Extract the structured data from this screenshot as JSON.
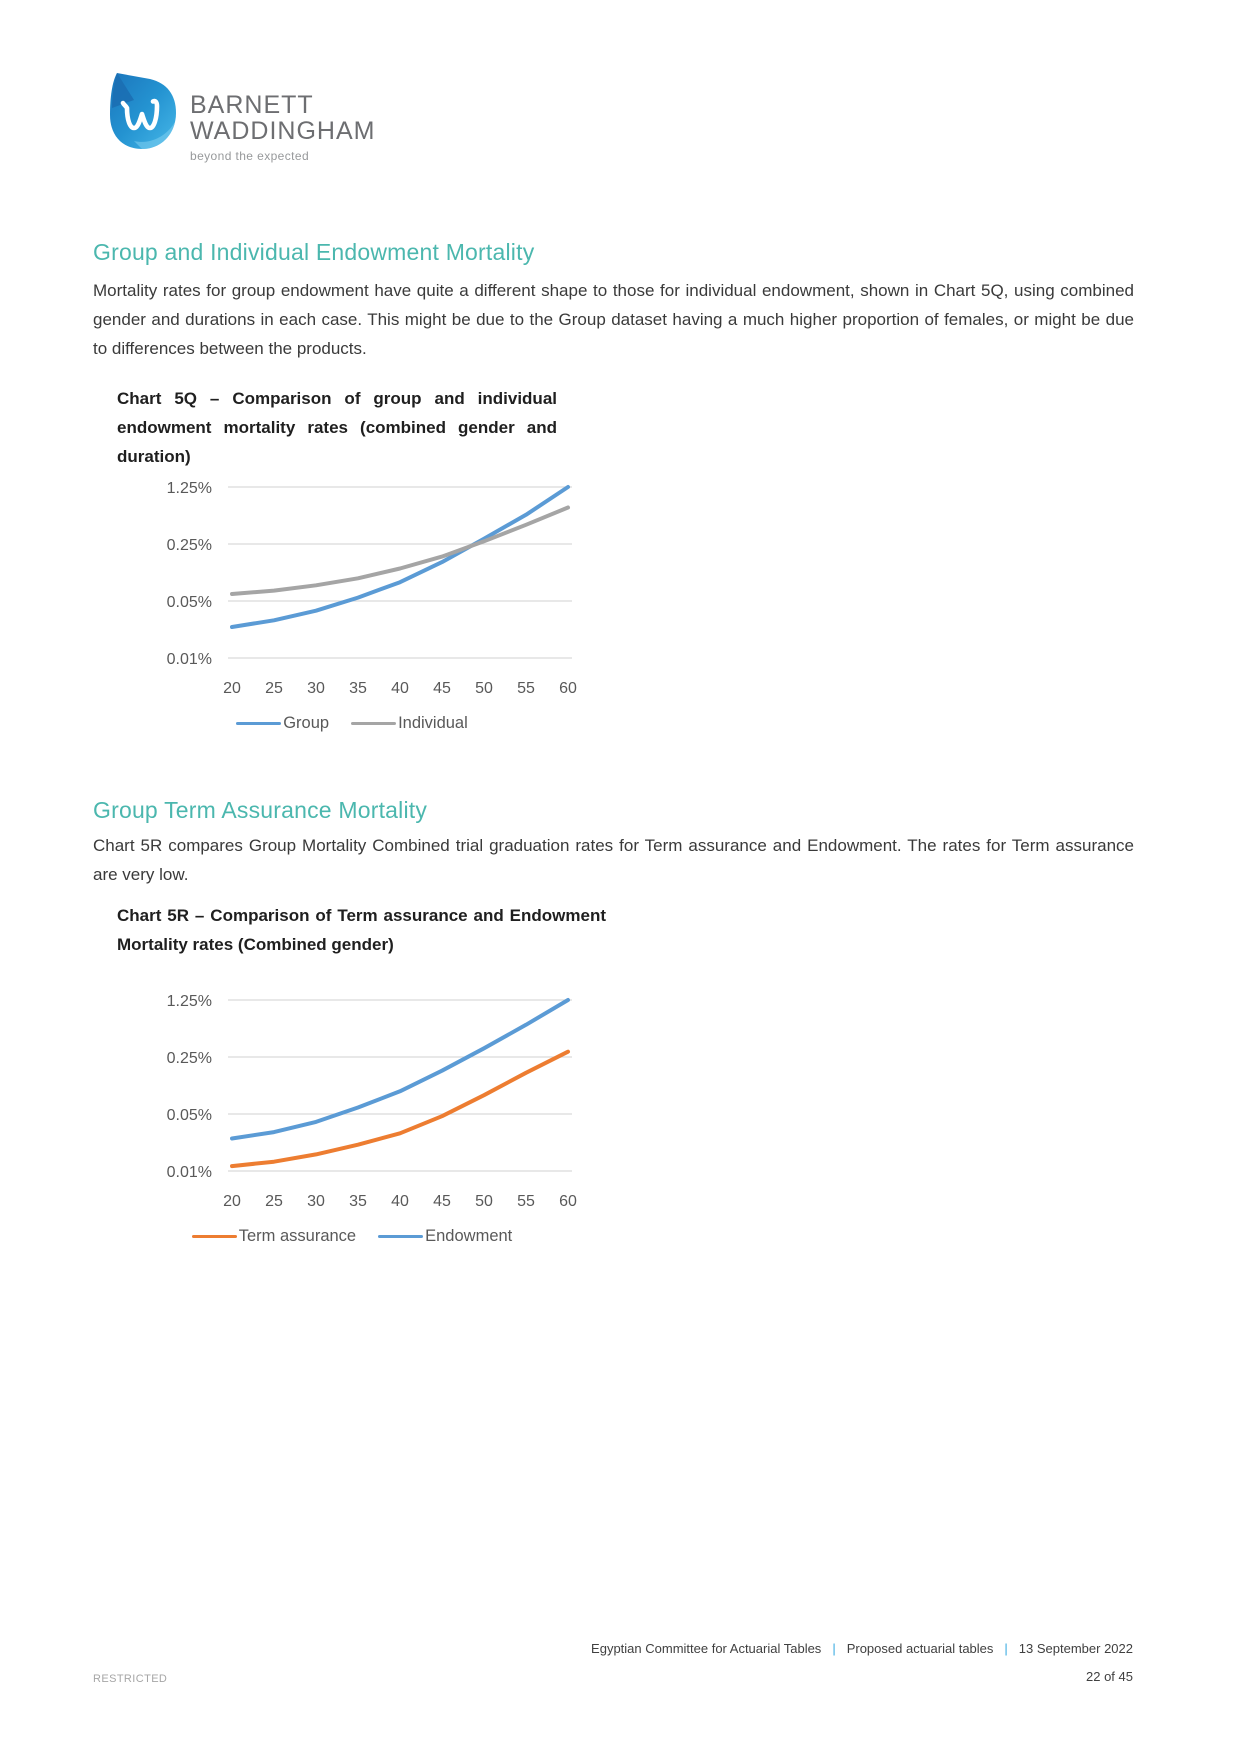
{
  "logo": {
    "brand_line1": "BARNETT",
    "brand_line2": "WADDINGHAM",
    "tagline": "beyond the expected"
  },
  "sections": [
    {
      "heading": "Group and Individual Endowment Mortality",
      "body": "Mortality rates for group endowment have quite a different shape to those for individual endowment, shown in Chart 5Q, using combined gender and durations in each case. This might be due to the Group dataset having a much higher proportion of females, or might be due to differences between the products."
    },
    {
      "heading": "Group Term Assurance Mortality",
      "body": "Chart 5R compares Group Mortality Combined trial graduation rates for Term assurance and Endowment. The rates for Term assurance are very low."
    }
  ],
  "chart_data": [
    {
      "type": "line",
      "title": "Chart 5Q – Comparison of group and individual endowment mortality rates (combined gender and duration)",
      "x": [
        20,
        25,
        30,
        35,
        40,
        45,
        50,
        55,
        60
      ],
      "xlabel": "",
      "ylabel": "",
      "y_scale": "log",
      "ylim": [
        0.01,
        1.25
      ],
      "y_ticks": [
        "1.25%",
        "0.25%",
        "0.05%",
        "0.01%"
      ],
      "y_tick_values": [
        1.25,
        0.25,
        0.05,
        0.01
      ],
      "grid": true,
      "legend_position": "bottom",
      "series": [
        {
          "name": "Group",
          "color": "#5B9BD5",
          "values": [
            0.024,
            0.029,
            0.038,
            0.055,
            0.085,
            0.15,
            0.29,
            0.57,
            1.25
          ]
        },
        {
          "name": "Individual",
          "color": "#A5A5A5",
          "values": [
            0.061,
            0.067,
            0.078,
            0.095,
            0.125,
            0.175,
            0.27,
            0.43,
            0.7
          ]
        }
      ]
    },
    {
      "type": "line",
      "title": "Chart 5R – Comparison of Term assurance and Endowment Mortality rates (Combined gender)",
      "x": [
        20,
        25,
        30,
        35,
        40,
        45,
        50,
        55,
        60
      ],
      "xlabel": "",
      "ylabel": "",
      "y_scale": "log",
      "ylim": [
        0.01,
        1.25
      ],
      "y_ticks": [
        "1.25%",
        "0.25%",
        "0.05%",
        "0.01%"
      ],
      "y_tick_values": [
        1.25,
        0.25,
        0.05,
        0.01
      ],
      "grid": true,
      "legend_position": "bottom",
      "series": [
        {
          "name": "Term assurance",
          "color": "#ED7D31",
          "values": [
            0.0115,
            0.013,
            0.016,
            0.021,
            0.029,
            0.047,
            0.085,
            0.16,
            0.29
          ]
        },
        {
          "name": "Endowment",
          "color": "#5B9BD5",
          "values": [
            0.025,
            0.03,
            0.04,
            0.06,
            0.095,
            0.17,
            0.32,
            0.62,
            1.25
          ]
        }
      ]
    }
  ],
  "footer": {
    "items": [
      "Egyptian Committee for Actuarial Tables",
      "Proposed actuarial tables",
      "13 September 2022"
    ],
    "separator": "|",
    "page_number": "22 of 45",
    "classification": "RESTRICTED"
  },
  "colors": {
    "accent_teal": "#4BB7AE",
    "footer_pipe": "#36A9E1",
    "group_blue": "#5B9BD5",
    "individual_gray": "#A5A5A5",
    "term_orange": "#ED7D31",
    "gridline": "#D9D9D9"
  }
}
